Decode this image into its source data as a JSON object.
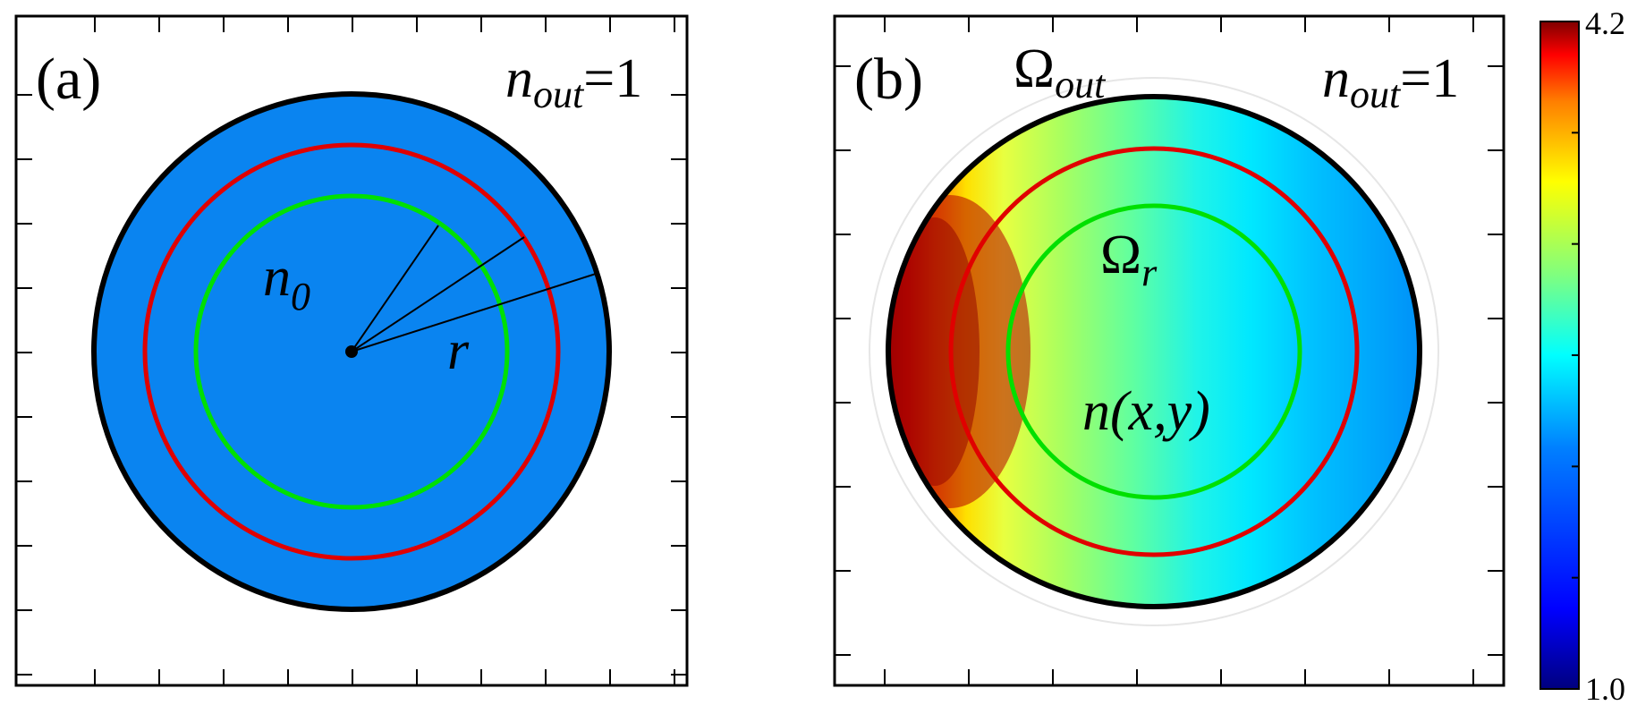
{
  "panel_a": {
    "label": "(a)",
    "n_out": {
      "symbol": "n",
      "subscript": "out",
      "value_text": "=1"
    },
    "n0": {
      "symbol": "n",
      "subscript": "0"
    },
    "radius_label": "r",
    "fill_color": "#0A84F0",
    "outer_boundary_color": "#000000",
    "red_ring_color": "#E00000",
    "green_ring_color": "#00E000"
  },
  "panel_b": {
    "label": "(b)",
    "omega_out": {
      "symbol": "Ω",
      "subscript": "out"
    },
    "omega_r": {
      "symbol": "Ω",
      "subscript": "r"
    },
    "n_out": {
      "symbol": "n",
      "subscript": "out",
      "value_text": "=1"
    },
    "index_field": "n(x,y)",
    "red_ring_color": "#E00000",
    "green_ring_color": "#00E000"
  },
  "colorbar": {
    "max_label": "4.2",
    "min_label": "1.0",
    "colormap": [
      "#00007F",
      "#0000FF",
      "#007FFF",
      "#00FFFF",
      "#7FFF7F",
      "#FFFF00",
      "#FF7F00",
      "#FF0000",
      "#7F0000"
    ]
  }
}
